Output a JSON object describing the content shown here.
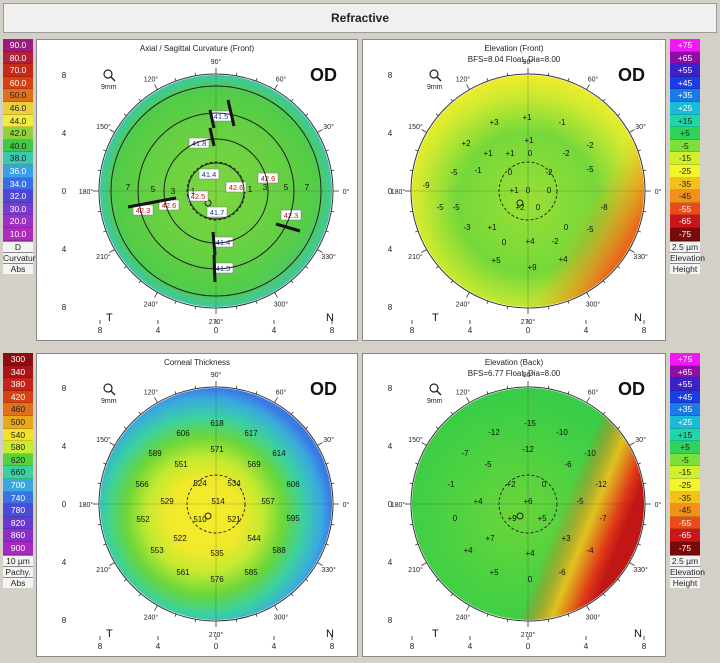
{
  "header": {
    "title": "Refractive"
  },
  "scales": {
    "curvature": {
      "values": [
        "90.0",
        "80.0",
        "70.0",
        "60.0",
        "50.0",
        "46.0",
        "44.0",
        "42.0",
        "40.0",
        "38.0",
        "36.0",
        "34.0",
        "32.0",
        "30.0",
        "20.0",
        "10.0"
      ],
      "colors": [
        "#9b1c7a",
        "#b2203a",
        "#c82a1a",
        "#d64212",
        "#e0701a",
        "#ead040",
        "#f1ec40",
        "#8fd23a",
        "#40c846",
        "#3ac8b0",
        "#3aa0e8",
        "#3a6ee8",
        "#5046d6",
        "#7a3ad0",
        "#9b30c4",
        "#b02ac0"
      ],
      "unit": "D",
      "labels": [
        "Curvature",
        "Abs"
      ]
    },
    "elevation_front": {
      "values": [
        "75",
        "65",
        "55",
        "45",
        "35",
        "25",
        "15",
        "5",
        "-5",
        "-15",
        "-25",
        "-35",
        "-45",
        "-55",
        "-65",
        "-75"
      ],
      "display": [
        "+75",
        "+65",
        "+55",
        "+45",
        "+35",
        "+25",
        "+15",
        "+5",
        "-5",
        "-15",
        "-25",
        "-35",
        "-45",
        "-55",
        "-65",
        "-75"
      ],
      "colors": [
        "#f218f6",
        "#8c0ea6",
        "#3a22c8",
        "#1a3ee6",
        "#1a7ae6",
        "#18bcd8",
        "#1ed6a6",
        "#2ed45a",
        "#7ce03a",
        "#d2ef2c",
        "#f4f42a",
        "#f2c21a",
        "#f29018",
        "#ec4a1a",
        "#c8161a",
        "#7a0a0a"
      ],
      "unit": "2.5 µm",
      "labels": [
        "Elevation",
        "Height"
      ]
    },
    "pachy": {
      "values": [
        "300",
        "340",
        "380",
        "420",
        "460",
        "500",
        "540",
        "580",
        "620",
        "660",
        "700",
        "740",
        "780",
        "820",
        "860",
        "900"
      ],
      "colors": [
        "#8a0e0e",
        "#a8161a",
        "#c4241a",
        "#d64212",
        "#e0701a",
        "#eaa81c",
        "#f2e22a",
        "#c8ea30",
        "#56d23a",
        "#3ad0a0",
        "#3aa8e0",
        "#3a72e4",
        "#4a4cd6",
        "#6a3ad0",
        "#8a30c8",
        "#a62ac2"
      ],
      "unit": "10 µm",
      "labels": [
        "Pachy.",
        "Abs"
      ]
    },
    "elevation_back": {
      "values": [
        "75",
        "65",
        "55",
        "45",
        "35",
        "25",
        "15",
        "5",
        "-5",
        "-15",
        "-25",
        "-35",
        "-45",
        "-55",
        "-65",
        "-75"
      ],
      "display": [
        "+75",
        "+65",
        "+55",
        "+45",
        "+35",
        "+25",
        "+15",
        "+5",
        "-5",
        "-15",
        "-25",
        "-35",
        "-45",
        "-55",
        "-65",
        "-75"
      ],
      "colors": [
        "#f218f6",
        "#8c0ea6",
        "#3a22c8",
        "#1a3ee6",
        "#1a7ae6",
        "#18bcd8",
        "#1ed6a6",
        "#2ed45a",
        "#7ce03a",
        "#d2ef2c",
        "#f4f42a",
        "#f2c21a",
        "#f29018",
        "#ec4a1a",
        "#c8161a",
        "#7a0a0a"
      ],
      "unit": "2.5 µm",
      "labels": [
        "Elevation",
        "Height"
      ]
    }
  },
  "maps": {
    "curv": {
      "title": "Axial / Sagittal Curvature (Front)",
      "eye": "OD",
      "zoom": "9mm",
      "nasal": "N",
      "temporal": "T",
      "values": [
        {
          "t": "41.5",
          "x": 221,
          "y": 118,
          "c": "#1a3a8a"
        },
        {
          "t": "41.8",
          "x": 199,
          "y": 145,
          "c": "#1a3a8a"
        },
        {
          "t": "41.4",
          "x": 209,
          "y": 176,
          "c": "#1a3a8a"
        },
        {
          "t": "42.6",
          "x": 236,
          "y": 189,
          "c": "#c01818"
        },
        {
          "t": "42.6",
          "x": 268,
          "y": 180,
          "c": "#c01818"
        },
        {
          "t": "42.5",
          "x": 198,
          "y": 198,
          "c": "#c01818"
        },
        {
          "t": "42.6",
          "x": 169,
          "y": 207,
          "c": "#c01818"
        },
        {
          "t": "42.3",
          "x": 143,
          "y": 212,
          "c": "#c01818"
        },
        {
          "t": "42.3",
          "x": 291,
          "y": 217,
          "c": "#c01818"
        },
        {
          "t": "41.7",
          "x": 217,
          "y": 214,
          "c": "#1a3a8a"
        },
        {
          "t": "41.4",
          "x": 223,
          "y": 244,
          "c": "#1a3a8a"
        },
        {
          "t": "41.5",
          "x": 223,
          "y": 270,
          "c": "#1a3a8a"
        }
      ],
      "small": [
        {
          "t": "7",
          "x": 128,
          "y": 190
        },
        {
          "t": "5",
          "x": 153,
          "y": 192
        },
        {
          "t": "3",
          "x": 173,
          "y": 194
        },
        {
          "t": "1",
          "x": 193,
          "y": 194
        },
        {
          "t": "1",
          "x": 250,
          "y": 192
        },
        {
          "t": "3",
          "x": 265,
          "y": 190
        },
        {
          "t": "5",
          "x": 286,
          "y": 190
        },
        {
          "t": "7",
          "x": 307,
          "y": 190
        }
      ]
    },
    "ef": {
      "title": "Elevation (Front)",
      "subtitle": "BFS=8.04 Float, Dia=8.00",
      "eye": "OD",
      "zoom": "9mm",
      "nasal": "N",
      "temporal": "T",
      "values": [
        {
          "t": "+3",
          "x": 494,
          "y": 125
        },
        {
          "t": "+1",
          "x": 527,
          "y": 120
        },
        {
          "t": "-1",
          "x": 562,
          "y": 125
        },
        {
          "t": "+2",
          "x": 466,
          "y": 146
        },
        {
          "t": "+1",
          "x": 529,
          "y": 143
        },
        {
          "t": "-2",
          "x": 590,
          "y": 148
        },
        {
          "t": "+1",
          "x": 488,
          "y": 156
        },
        {
          "t": "+1",
          "x": 510,
          "y": 156
        },
        {
          "t": "0",
          "x": 530,
          "y": 156
        },
        {
          "t": "-2",
          "x": 566,
          "y": 156
        },
        {
          "t": "-5",
          "x": 454,
          "y": 175
        },
        {
          "t": "-1",
          "x": 478,
          "y": 173
        },
        {
          "t": "0",
          "x": 510,
          "y": 175
        },
        {
          "t": "-2",
          "x": 549,
          "y": 175
        },
        {
          "t": "-5",
          "x": 590,
          "y": 172
        },
        {
          "t": "-9",
          "x": 426,
          "y": 188
        },
        {
          "t": "-5",
          "x": 456,
          "y": 210
        },
        {
          "t": "+1",
          "x": 514,
          "y": 193
        },
        {
          "t": "0",
          "x": 528,
          "y": 193
        },
        {
          "t": "0",
          "x": 549,
          "y": 193
        },
        {
          "t": "-8",
          "x": 604,
          "y": 210
        },
        {
          "t": "-5",
          "x": 440,
          "y": 210
        },
        {
          "t": "+2",
          "x": 520,
          "y": 210
        },
        {
          "t": "0",
          "x": 538,
          "y": 210
        },
        {
          "t": "-3",
          "x": 467,
          "y": 230
        },
        {
          "t": "+1",
          "x": 492,
          "y": 230
        },
        {
          "t": "0",
          "x": 566,
          "y": 230
        },
        {
          "t": "-5",
          "x": 590,
          "y": 232
        },
        {
          "t": "0",
          "x": 504,
          "y": 245
        },
        {
          "t": "+4",
          "x": 530,
          "y": 244
        },
        {
          "t": "-2",
          "x": 555,
          "y": 244
        },
        {
          "t": "+5",
          "x": 496,
          "y": 263
        },
        {
          "t": "+9",
          "x": 532,
          "y": 270
        },
        {
          "t": "+4",
          "x": 563,
          "y": 262
        }
      ]
    },
    "pachy": {
      "title": "Corneal Thickness",
      "eye": "OD",
      "zoom": "9mm",
      "nasal": "N",
      "temporal": "T",
      "values": [
        {
          "t": "606",
          "x": 183,
          "y": 436
        },
        {
          "t": "618",
          "x": 217,
          "y": 426
        },
        {
          "t": "617",
          "x": 251,
          "y": 436
        },
        {
          "t": "589",
          "x": 155,
          "y": 456
        },
        {
          "t": "571",
          "x": 217,
          "y": 452
        },
        {
          "t": "614",
          "x": 279,
          "y": 456
        },
        {
          "t": "551",
          "x": 181,
          "y": 467
        },
        {
          "t": "569",
          "x": 254,
          "y": 467
        },
        {
          "t": "566",
          "x": 142,
          "y": 487
        },
        {
          "t": "524",
          "x": 200,
          "y": 486
        },
        {
          "t": "534",
          "x": 234,
          "y": 486
        },
        {
          "t": "606",
          "x": 293,
          "y": 487
        },
        {
          "t": "529",
          "x": 167,
          "y": 504
        },
        {
          "t": "514",
          "x": 218,
          "y": 504
        },
        {
          "t": "557",
          "x": 268,
          "y": 504
        },
        {
          "t": "552",
          "x": 143,
          "y": 522
        },
        {
          "t": "510",
          "x": 200,
          "y": 522
        },
        {
          "t": "521",
          "x": 234,
          "y": 522
        },
        {
          "t": "595",
          "x": 293,
          "y": 521
        },
        {
          "t": "522",
          "x": 180,
          "y": 541
        },
        {
          "t": "544",
          "x": 254,
          "y": 541
        },
        {
          "t": "553",
          "x": 157,
          "y": 553
        },
        {
          "t": "535",
          "x": 217,
          "y": 556
        },
        {
          "t": "588",
          "x": 279,
          "y": 553
        },
        {
          "t": "561",
          "x": 183,
          "y": 575
        },
        {
          "t": "576",
          "x": 217,
          "y": 582
        },
        {
          "t": "585",
          "x": 251,
          "y": 575
        }
      ]
    },
    "eb": {
      "title": "Elevation (Back)",
      "subtitle": "BFS=6.77 Float, Dia=8.00",
      "eye": "OD",
      "zoom": "9mm",
      "nasal": "N",
      "temporal": "T",
      "values": [
        {
          "t": "-15",
          "x": 530,
          "y": 426
        },
        {
          "t": "-12",
          "x": 494,
          "y": 435
        },
        {
          "t": "-10",
          "x": 562,
          "y": 435
        },
        {
          "t": "-7",
          "x": 465,
          "y": 456
        },
        {
          "t": "-12",
          "x": 528,
          "y": 452
        },
        {
          "t": "-10",
          "x": 590,
          "y": 456
        },
        {
          "t": "-5",
          "x": 488,
          "y": 467
        },
        {
          "t": "-6",
          "x": 568,
          "y": 467
        },
        {
          "t": "-1",
          "x": 451,
          "y": 487
        },
        {
          "t": "+2",
          "x": 511,
          "y": 487
        },
        {
          "t": "0",
          "x": 544,
          "y": 487
        },
        {
          "t": "-12",
          "x": 601,
          "y": 487
        },
        {
          "t": "+4",
          "x": 478,
          "y": 504
        },
        {
          "t": "+6",
          "x": 528,
          "y": 504
        },
        {
          "t": "-5",
          "x": 580,
          "y": 504
        },
        {
          "t": "0",
          "x": 455,
          "y": 521
        },
        {
          "t": "+9",
          "x": 512,
          "y": 521
        },
        {
          "t": "+5",
          "x": 542,
          "y": 521
        },
        {
          "t": "-7",
          "x": 603,
          "y": 521
        },
        {
          "t": "+7",
          "x": 490,
          "y": 541
        },
        {
          "t": "+3",
          "x": 566,
          "y": 541
        },
        {
          "t": "+4",
          "x": 468,
          "y": 553
        },
        {
          "t": "+4",
          "x": 530,
          "y": 556
        },
        {
          "t": "-4",
          "x": 590,
          "y": 553
        },
        {
          "t": "+5",
          "x": 494,
          "y": 575
        },
        {
          "t": "0",
          "x": 530,
          "y": 582
        },
        {
          "t": "-6",
          "x": 562,
          "y": 575
        }
      ]
    }
  },
  "axis": {
    "left": [
      "8",
      "4",
      "0",
      "4",
      "8"
    ],
    "bottom": [
      "8",
      "4",
      "0",
      "4",
      "8"
    ]
  },
  "angles": [
    "90°",
    "60°",
    "30°",
    "0°",
    "330°",
    "300°",
    "270°",
    "240°",
    "210°",
    "180°",
    "150°",
    "120°"
  ]
}
